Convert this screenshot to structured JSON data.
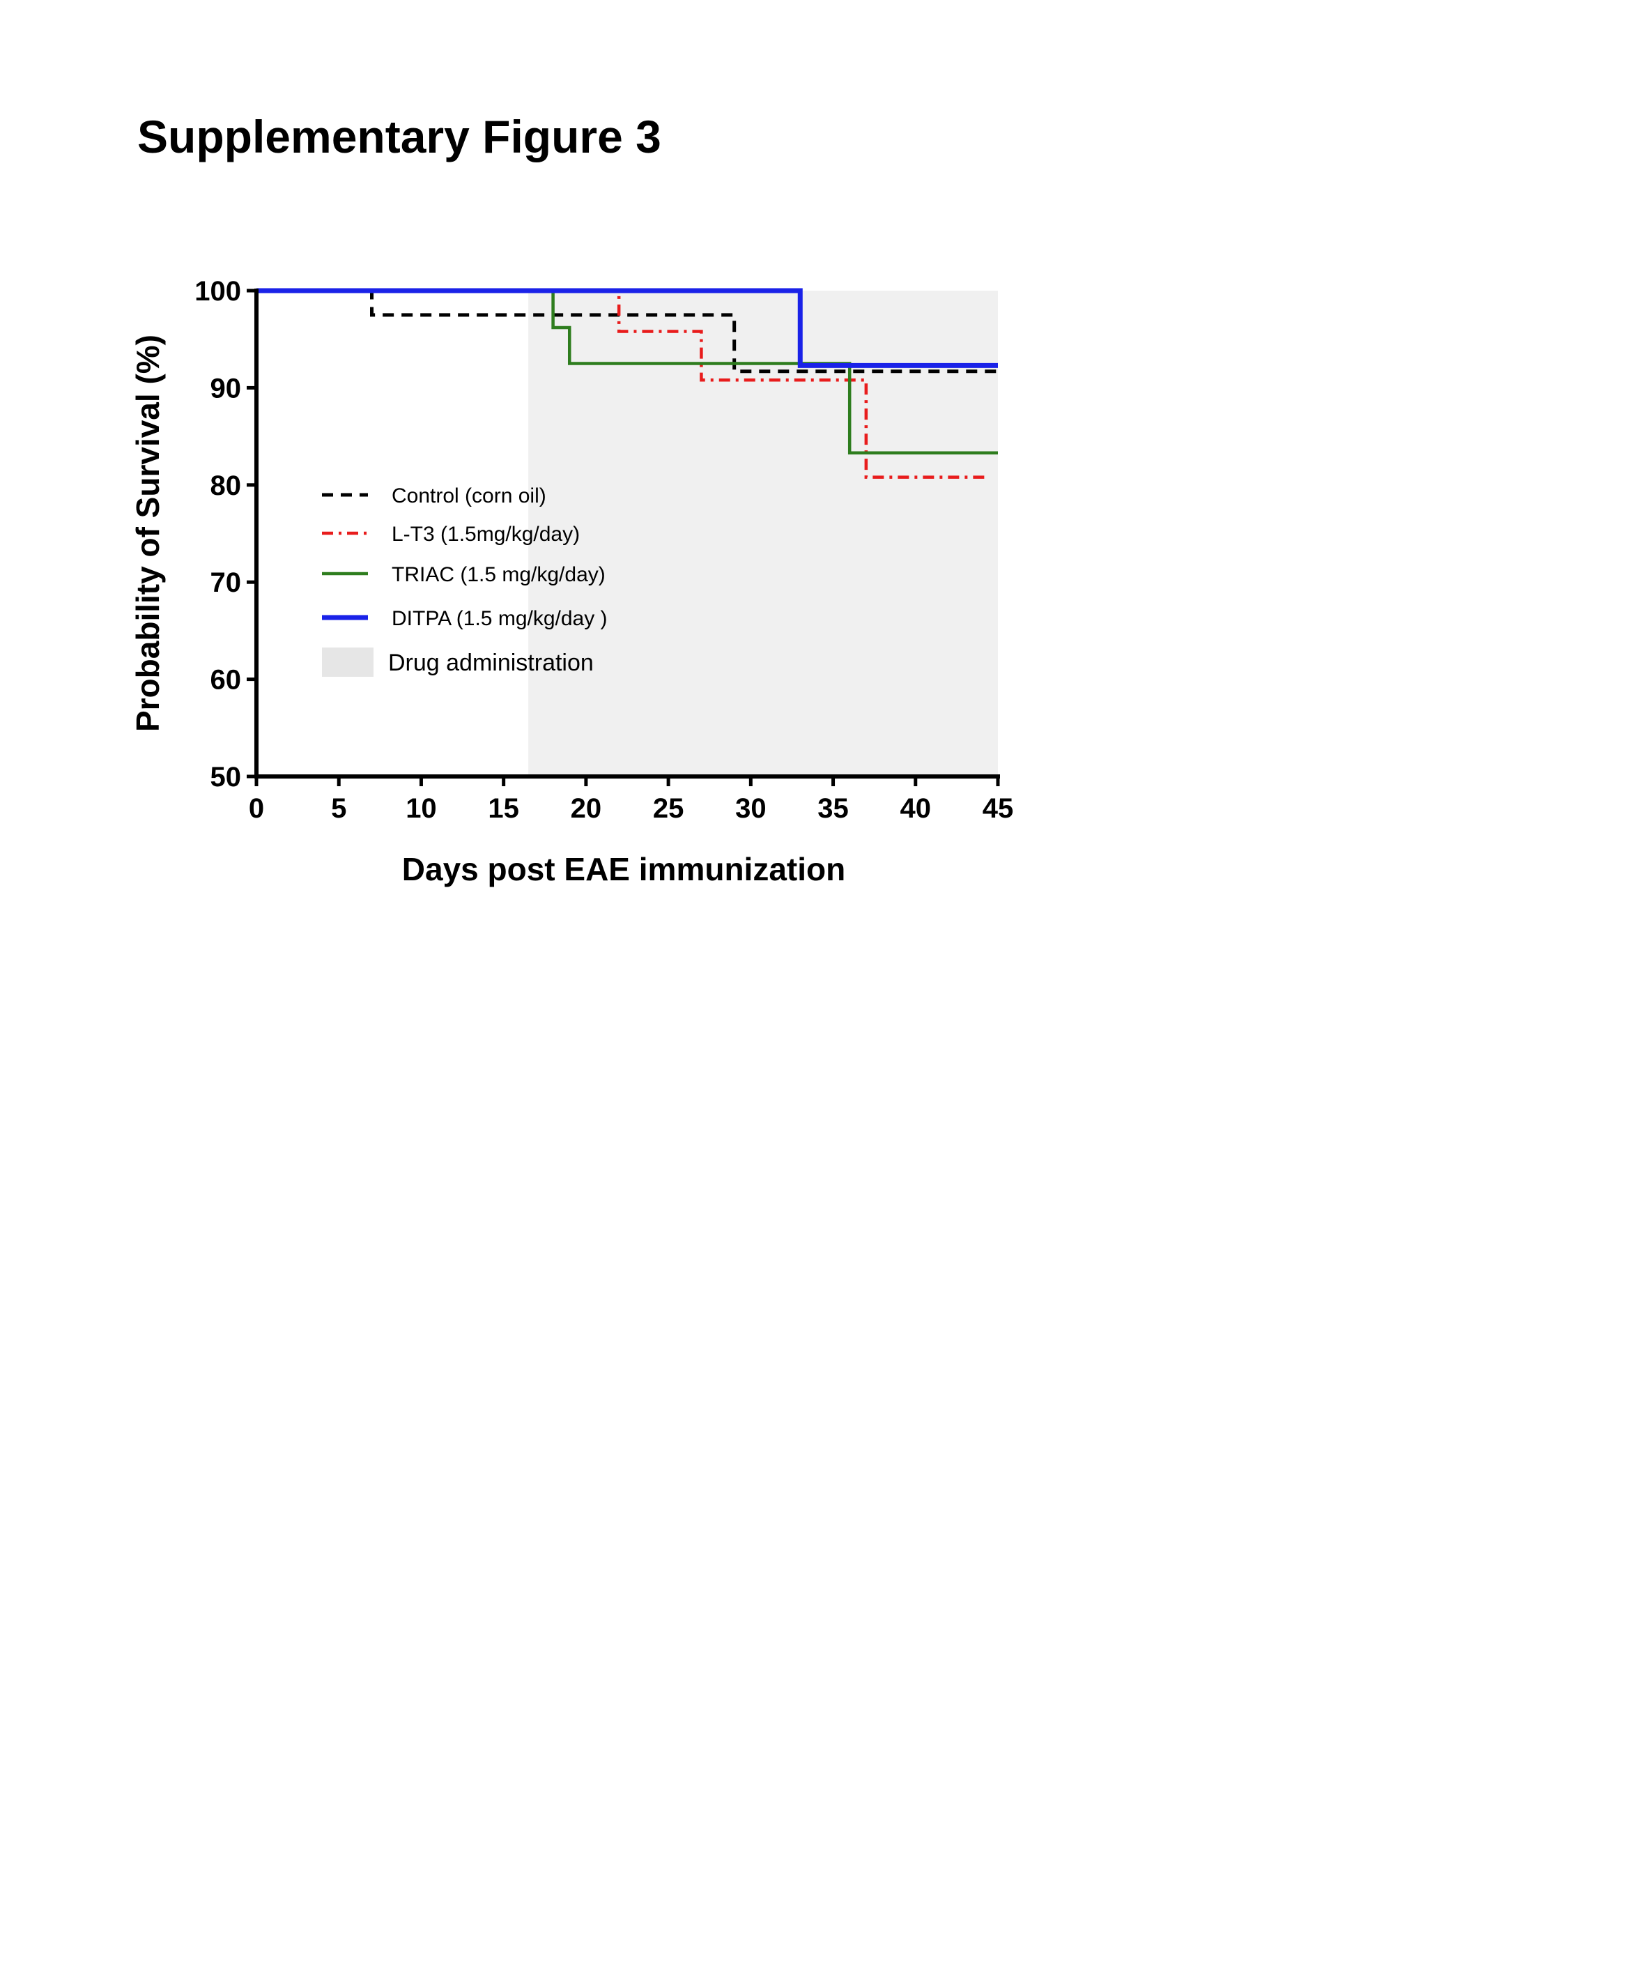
{
  "figure_title": "Supplementary Figure 3",
  "chart_data": {
    "type": "line",
    "step": true,
    "xlabel": "Days post EAE immunization",
    "ylabel": "Probability of Survival (%)",
    "xlim": [
      0,
      45
    ],
    "ylim": [
      50,
      100
    ],
    "xticks": [
      0,
      5,
      10,
      15,
      20,
      25,
      30,
      35,
      40,
      45
    ],
    "yticks": [
      50,
      60,
      70,
      80,
      90,
      100
    ],
    "grid": false,
    "legend_position": "center-left",
    "shaded_region": {
      "label": "Drug administration",
      "x": [
        16.5,
        45
      ],
      "color": "#f0f0f0",
      "legend_color": "#e6e6e6"
    },
    "series": [
      {
        "name": "Control (corn oil)",
        "color": "#000000",
        "dash": "dashed",
        "x": [
          0,
          7,
          29,
          45
        ],
        "y": [
          100,
          97.5,
          91.7,
          91.7
        ]
      },
      {
        "name": "L-T3 (1.5mg/kg/day)",
        "color": "#e81c1c",
        "dash": "dashdot",
        "x": [
          0,
          22,
          27,
          37,
          44.5
        ],
        "y": [
          100,
          95.8,
          90.8,
          80.8,
          80.8
        ]
      },
      {
        "name": "TRIAC (1.5 mg/kg/day)",
        "color": "#2e7d1e",
        "dash": "solid",
        "x": [
          0,
          18,
          19,
          36,
          45
        ],
        "y": [
          100,
          96.2,
          92.5,
          83.3,
          83.3
        ]
      },
      {
        "name": "DITPA (1.5 mg/kg/day )",
        "color": "#1a22e8",
        "dash": "solid-thick",
        "x": [
          0,
          33,
          45
        ],
        "y": [
          100,
          92.3,
          92.3
        ]
      }
    ]
  }
}
